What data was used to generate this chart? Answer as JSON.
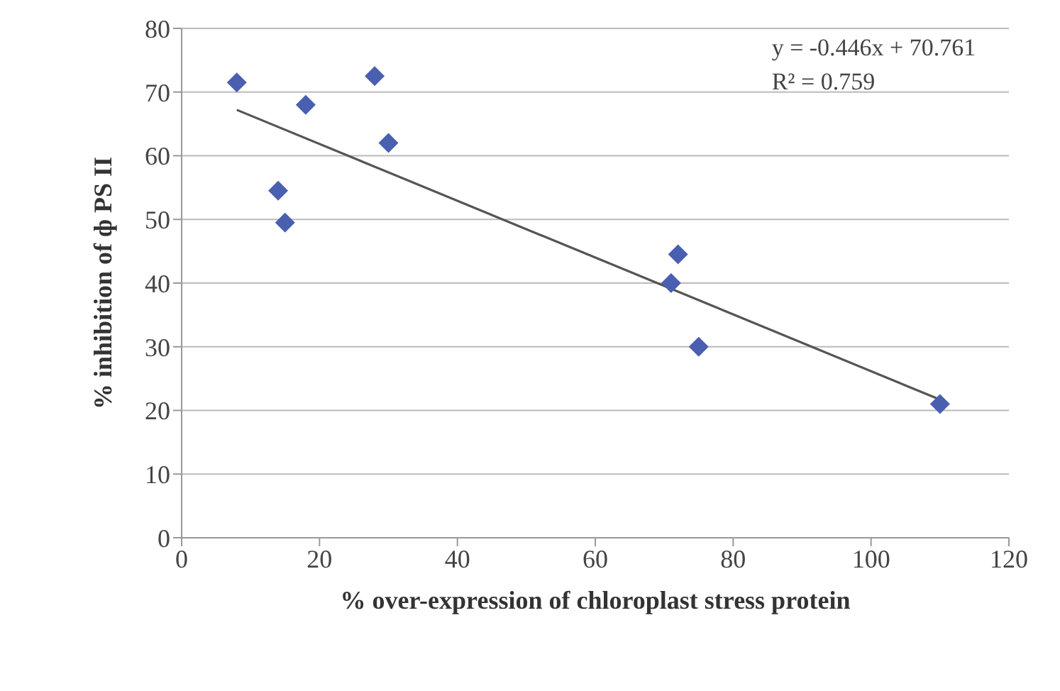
{
  "chart_data": {
    "type": "scatter",
    "xlabel": "% over-expression of  chloroplast stress protein",
    "ylabel": "% inhibition of  ф PS II",
    "x": [
      8,
      14,
      15,
      18,
      28,
      30,
      71,
      72,
      75,
      110
    ],
    "series": [
      {
        "color": "#4a5fb0",
        "marker": "diamond",
        "values": [
          71.5,
          54.5,
          49.5,
          68,
          72.5,
          62,
          40,
          44.5,
          30,
          21
        ]
      },
      {
        "type": "line",
        "color": "#555555",
        "marker": "none",
        "x": [
          8,
          110
        ],
        "values": [
          67.2,
          21.7
        ]
      }
    ],
    "xlim": [
      0,
      120
    ],
    "xticks": [
      0,
      20,
      40,
      60,
      80,
      100,
      120
    ],
    "ylim": [
      0,
      80
    ],
    "yticks": [
      0,
      10,
      20,
      30,
      40,
      50,
      60,
      70,
      80
    ],
    "grid": "y",
    "annotations": [
      "y = -0.446x + 70.761",
      "R² = 0.759"
    ]
  }
}
